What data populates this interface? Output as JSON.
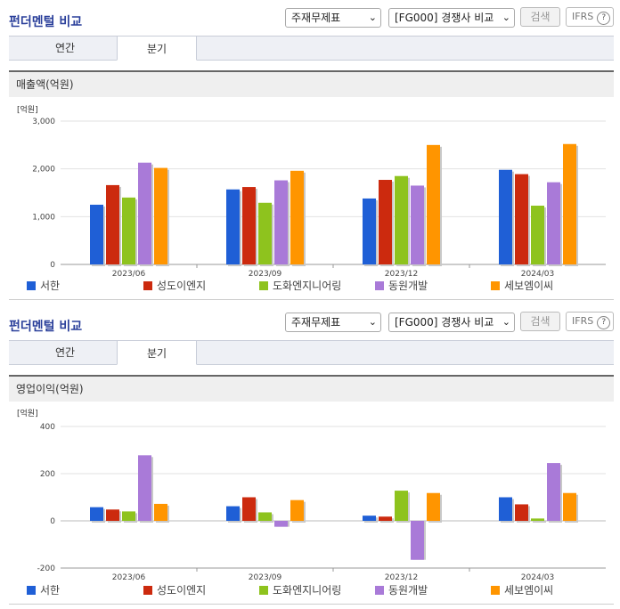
{
  "panels": [
    {
      "title": "펀더멘털 비교",
      "select1": "주재무제표",
      "select2": "[FG000] 경쟁사 비교",
      "search_btn": "검색",
      "ifrs": "IFRS",
      "tabs": [
        "연간",
        "분기"
      ],
      "active_tab": 1,
      "subtitle": "매출액(억원)"
    },
    {
      "title": "펀더멘털 비교",
      "select1": "주재무제표",
      "select2": "[FG000] 경쟁사 비교",
      "search_btn": "검색",
      "ifrs": "IFRS",
      "tabs": [
        "연간",
        "분기"
      ],
      "active_tab": 1,
      "subtitle": "영업이익(억원)"
    }
  ],
  "chart_data": [
    {
      "type": "bar",
      "unit_label": "[억원]",
      "categories": [
        "2023/06",
        "2023/09",
        "2023/12",
        "2024/03"
      ],
      "ylim": [
        0,
        3000
      ],
      "yticks": [
        0,
        1000,
        2000,
        3000
      ],
      "ytick_labels": [
        "0",
        "1,000",
        "2,000",
        "3,000"
      ],
      "series": [
        {
          "name": "서한",
          "color": "#1f5fd6",
          "values": [
            1250,
            1570,
            1380,
            1980
          ]
        },
        {
          "name": "성도이엔지",
          "color": "#cc2a0e",
          "values": [
            1660,
            1620,
            1770,
            1890
          ]
        },
        {
          "name": "도화엔지니어링",
          "color": "#8ec31e",
          "values": [
            1400,
            1290,
            1850,
            1230
          ]
        },
        {
          "name": "동원개발",
          "color": "#a97ad8",
          "values": [
            2130,
            1760,
            1650,
            1720
          ]
        },
        {
          "name": "세보엠이씨",
          "color": "#ff9500",
          "values": [
            2020,
            1960,
            2500,
            2520
          ]
        }
      ]
    },
    {
      "type": "bar",
      "unit_label": "[억원]",
      "categories": [
        "2023/06",
        "2023/09",
        "2023/12",
        "2024/03"
      ],
      "ylim": [
        -200,
        400
      ],
      "yticks": [
        -200,
        0,
        200,
        400
      ],
      "ytick_labels": [
        "-200",
        "0",
        "200",
        "400"
      ],
      "series": [
        {
          "name": "서한",
          "color": "#1f5fd6",
          "values": [
            58,
            62,
            22,
            100
          ]
        },
        {
          "name": "성도이엔지",
          "color": "#cc2a0e",
          "values": [
            48,
            100,
            18,
            70
          ]
        },
        {
          "name": "도화엔지니어링",
          "color": "#8ec31e",
          "values": [
            40,
            36,
            128,
            10
          ]
        },
        {
          "name": "동원개발",
          "color": "#a97ad8",
          "values": [
            278,
            -25,
            -165,
            245
          ]
        },
        {
          "name": "세보엠이씨",
          "color": "#ff9500",
          "values": [
            72,
            88,
            118,
            118
          ]
        }
      ]
    }
  ]
}
